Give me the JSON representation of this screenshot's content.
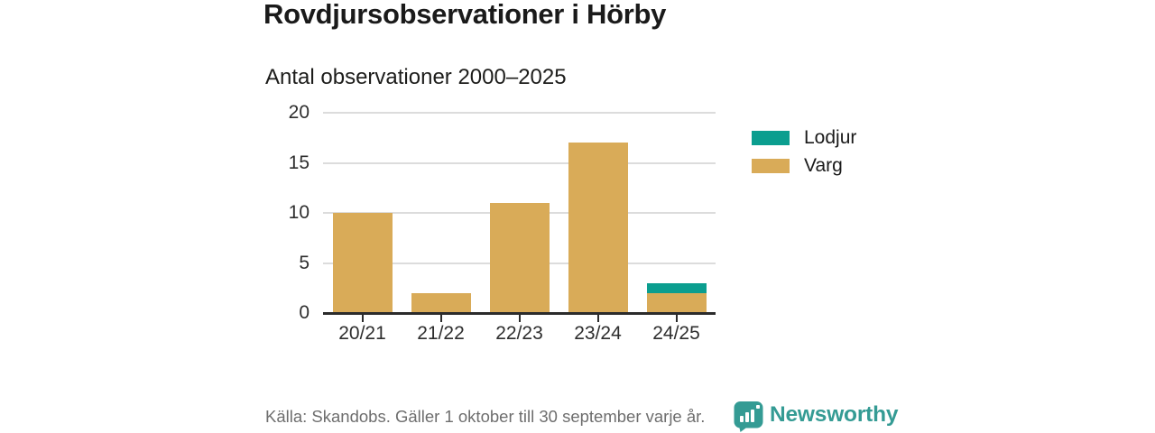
{
  "chart_data": {
    "type": "bar",
    "stacked": true,
    "title": "Rovdjursobservationer i Hörby",
    "subtitle": "Antal observationer 2000–2025",
    "categories": [
      "20/21",
      "21/22",
      "22/23",
      "23/24",
      "24/25"
    ],
    "series": [
      {
        "name": "Varg",
        "color": "#d9ab58",
        "values": [
          10,
          2,
          11,
          17,
          2
        ]
      },
      {
        "name": "Lodjur",
        "color": "#0b9e8f",
        "values": [
          0,
          0,
          0,
          0,
          1
        ]
      }
    ],
    "xlabel": "",
    "ylabel": "",
    "ylim": [
      0,
      20
    ],
    "yticks": [
      0,
      5,
      10,
      15,
      20
    ],
    "grid": true,
    "legend_position": "right"
  },
  "legend": {
    "items": [
      {
        "label": "Lodjur",
        "color": "#0b9e8f"
      },
      {
        "label": "Varg",
        "color": "#d9ab58"
      }
    ]
  },
  "footer": {
    "source": "Källa: Skandobs. Gäller 1 oktober till 30 september varje år.",
    "brand": "Newsworthy"
  },
  "colors": {
    "varg": "#d9ab58",
    "lodjur": "#0b9e8f",
    "brand_teal": "#349b94",
    "axis_line": "#2b2b2b",
    "gridline": "#dcdcdc",
    "text": "#1a1a1a",
    "muted_text": "#6e6e6e"
  }
}
